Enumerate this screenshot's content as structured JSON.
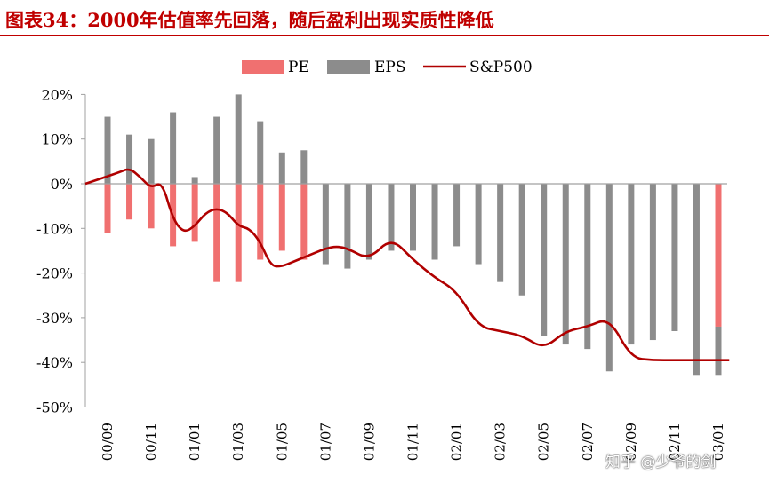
{
  "title": "图表34：2000年估值率先回落，随后盈利出现实质性降低",
  "watermark": "知乎 @少爷的剑",
  "colors": {
    "pe": "#f07070",
    "eps": "#8c8c8c",
    "sp500": "#b00000",
    "title": "#c00000"
  },
  "chart_data": {
    "type": "bar",
    "title": "图表34：2000年估值率先回落，随后盈利出现实质性降低",
    "legend": [
      "PE",
      "EPS",
      "S&P500"
    ],
    "legend_position": "top",
    "ylim": [
      -50,
      20
    ],
    "yticks": [
      "20%",
      "10%",
      "0%",
      "-10%",
      "-20%",
      "-30%",
      "-40%",
      "-50%"
    ],
    "xtick_labels": [
      "00/09",
      "00/11",
      "01/01",
      "01/03",
      "01/05",
      "01/07",
      "01/09",
      "01/11",
      "02/01",
      "02/03",
      "02/05",
      "02/07",
      "02/09",
      "02/11",
      "03/01"
    ],
    "categories": [
      "00/09",
      "00/10",
      "00/11",
      "00/12",
      "01/01",
      "01/02",
      "01/03",
      "01/04",
      "01/05",
      "01/06",
      "01/07",
      "01/08",
      "01/09",
      "01/10",
      "01/11",
      "01/12",
      "02/01",
      "02/02",
      "02/03",
      "02/04",
      "02/05",
      "02/06",
      "02/07",
      "02/08",
      "02/09",
      "02/10",
      "02/11",
      "02/12",
      "03/01"
    ],
    "series": [
      {
        "name": "PE",
        "type": "bar",
        "values": [
          -11,
          -8,
          -10,
          -14,
          -13,
          -22,
          -22,
          -17,
          -15,
          -17,
          0,
          0,
          0,
          0,
          0,
          0,
          0,
          0,
          0,
          0,
          0,
          0,
          0,
          0,
          0,
          0,
          0,
          0,
          -32
        ]
      },
      {
        "name": "EPS",
        "type": "bar",
        "values": [
          15,
          11,
          10,
          16,
          1.5,
          15,
          20,
          14,
          7,
          7.5,
          -18,
          -19,
          -17,
          -15,
          -15,
          -17,
          -14,
          -18,
          -22,
          -25,
          -34,
          -36,
          -37,
          -42,
          -36,
          -35,
          -33,
          -43,
          -43
        ]
      },
      {
        "name": "S&P500",
        "type": "line",
        "x": [
          0,
          0.5,
          1,
          1.5,
          2,
          2.5,
          3,
          3.5,
          4,
          4.5,
          5,
          5.5,
          6,
          6.5,
          7,
          7.5,
          8,
          8.5,
          9,
          9.5,
          10,
          10.5,
          11,
          12,
          13,
          14,
          15,
          16,
          17,
          18,
          19,
          20,
          21,
          22,
          23,
          24,
          25,
          26,
          27,
          28,
          28.5
        ],
        "values": [
          0,
          2.5,
          3.5,
          1.5,
          -1,
          0.5,
          -8,
          -11,
          -9.5,
          -6.5,
          -5.5,
          -6.5,
          -9.5,
          -10,
          -13,
          -18.5,
          -18.5,
          -17.5,
          -16.5,
          -15.5,
          -14.5,
          -14,
          -14.5,
          -17,
          -12,
          -17,
          -21,
          -24,
          -32,
          -33,
          -34,
          -37,
          -33,
          -32,
          -30,
          -39,
          -39.5,
          -39.5,
          -39.5,
          -39.5,
          -39.5
        ]
      }
    ]
  }
}
